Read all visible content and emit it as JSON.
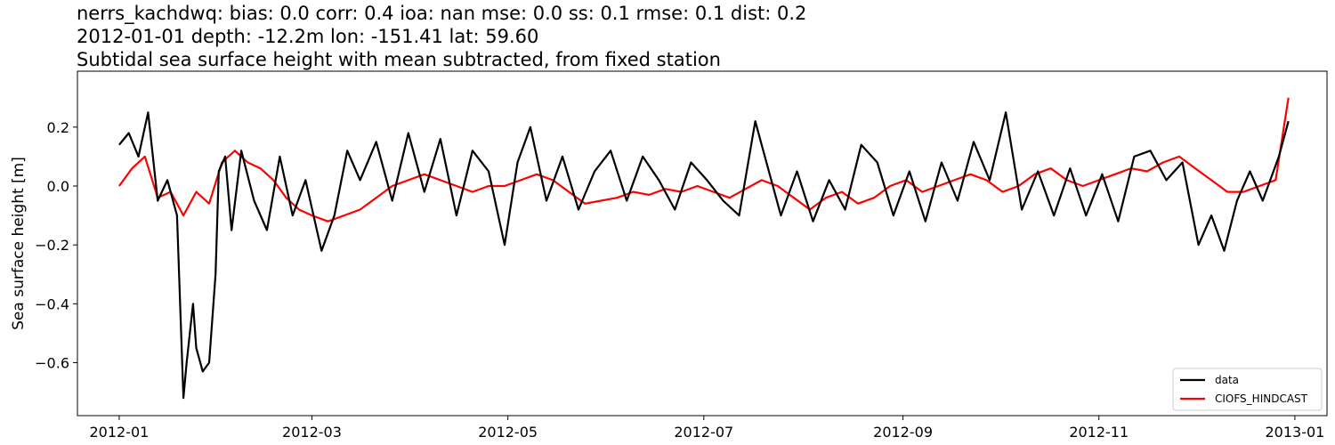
{
  "chart_data": {
    "type": "line",
    "title_lines": [
      "nerrs_kachdwq: bias: 0.0  corr: 0.4  ioa: nan  mse: 0.0  ss: 0.1  rmse: 0.1  dist: 0.2",
      "2012-01-01 depth: -12.2m lon: -151.41 lat: 59.60",
      "Subtidal sea surface height with mean subtracted, from fixed station"
    ],
    "xlabel": "",
    "ylabel": "Sea surface height [m]",
    "xlim": [
      "2011-12-19",
      "2013-01-11"
    ],
    "ylim": [
      -0.78,
      0.39
    ],
    "x_ticks": [
      "2012-01",
      "2012-03",
      "2012-05",
      "2012-07",
      "2012-09",
      "2012-11",
      "2013-01"
    ],
    "y_ticks": [
      0.2,
      0.0,
      -0.2,
      -0.4,
      -0.6
    ],
    "y_tick_labels": [
      "0.2",
      "0.0",
      "−0.2",
      "−0.4",
      "−0.6"
    ],
    "grid": false,
    "legend_position": "lower-right",
    "colors": {
      "data": "#000000",
      "CIOFS_HINDCAST": "#ff0000"
    },
    "series": [
      {
        "name": "data",
        "x": [
          "2012-01-01",
          "2012-01-04",
          "2012-01-07",
          "2012-01-10",
          "2012-01-13",
          "2012-01-16",
          "2012-01-19",
          "2012-01-21",
          "2012-01-22",
          "2012-01-24",
          "2012-01-25",
          "2012-01-27",
          "2012-01-29",
          "2012-01-31",
          "2012-02-01",
          "2012-02-03",
          "2012-02-05",
          "2012-02-08",
          "2012-02-12",
          "2012-02-16",
          "2012-02-20",
          "2012-02-24",
          "2012-02-28",
          "2012-03-04",
          "2012-03-08",
          "2012-03-12",
          "2012-03-16",
          "2012-03-21",
          "2012-03-26",
          "2012-03-31",
          "2012-04-05",
          "2012-04-10",
          "2012-04-15",
          "2012-04-20",
          "2012-04-25",
          "2012-04-30",
          "2012-05-04",
          "2012-05-08",
          "2012-05-13",
          "2012-05-18",
          "2012-05-23",
          "2012-05-28",
          "2012-06-02",
          "2012-06-07",
          "2012-06-12",
          "2012-06-17",
          "2012-06-22",
          "2012-06-27",
          "2012-07-02",
          "2012-07-07",
          "2012-07-12",
          "2012-07-17",
          "2012-07-20",
          "2012-07-25",
          "2012-07-30",
          "2012-08-04",
          "2012-08-09",
          "2012-08-14",
          "2012-08-19",
          "2012-08-24",
          "2012-08-29",
          "2012-09-03",
          "2012-09-08",
          "2012-09-13",
          "2012-09-18",
          "2012-09-23",
          "2012-09-28",
          "2012-10-03",
          "2012-10-08",
          "2012-10-13",
          "2012-10-18",
          "2012-10-23",
          "2012-10-28",
          "2012-11-02",
          "2012-11-07",
          "2012-11-12",
          "2012-11-17",
          "2012-11-22",
          "2012-11-27",
          "2012-12-02",
          "2012-12-06",
          "2012-12-10",
          "2012-12-14",
          "2012-12-18",
          "2012-12-22",
          "2012-12-27",
          "2012-12-30"
        ],
        "values": [
          0.14,
          0.18,
          0.1,
          0.25,
          -0.05,
          0.02,
          -0.1,
          -0.72,
          -0.6,
          -0.4,
          -0.55,
          -0.63,
          -0.6,
          -0.3,
          0.05,
          0.1,
          -0.15,
          0.12,
          -0.05,
          -0.15,
          0.1,
          -0.1,
          0.02,
          -0.22,
          -0.1,
          0.12,
          0.02,
          0.15,
          -0.05,
          0.18,
          -0.02,
          0.16,
          -0.1,
          0.12,
          0.05,
          -0.2,
          0.08,
          0.2,
          -0.05,
          0.1,
          -0.08,
          0.05,
          0.12,
          -0.05,
          0.1,
          0.02,
          -0.08,
          0.08,
          0.02,
          -0.05,
          -0.1,
          0.22,
          0.1,
          -0.1,
          0.05,
          -0.12,
          0.02,
          -0.08,
          0.14,
          0.08,
          -0.1,
          0.05,
          -0.12,
          0.08,
          -0.05,
          0.15,
          0.02,
          0.25,
          -0.08,
          0.05,
          -0.1,
          0.06,
          -0.1,
          0.04,
          -0.12,
          0.1,
          0.12,
          0.02,
          0.08,
          -0.2,
          -0.1,
          -0.22,
          -0.05,
          0.05,
          -0.05,
          0.1,
          0.22
        ]
      },
      {
        "name": "CIOFS_HINDCAST",
        "x": [
          "2012-01-01",
          "2012-01-05",
          "2012-01-09",
          "2012-01-13",
          "2012-01-17",
          "2012-01-21",
          "2012-01-25",
          "2012-01-29",
          "2012-02-02",
          "2012-02-06",
          "2012-02-10",
          "2012-02-14",
          "2012-02-18",
          "2012-02-22",
          "2012-02-26",
          "2012-03-01",
          "2012-03-06",
          "2012-03-11",
          "2012-03-16",
          "2012-03-21",
          "2012-03-26",
          "2012-03-31",
          "2012-04-05",
          "2012-04-10",
          "2012-04-15",
          "2012-04-20",
          "2012-04-25",
          "2012-04-30",
          "2012-05-05",
          "2012-05-10",
          "2012-05-15",
          "2012-05-20",
          "2012-05-25",
          "2012-05-30",
          "2012-06-04",
          "2012-06-09",
          "2012-06-14",
          "2012-06-19",
          "2012-06-24",
          "2012-06-29",
          "2012-07-04",
          "2012-07-09",
          "2012-07-14",
          "2012-07-19",
          "2012-07-24",
          "2012-07-29",
          "2012-08-03",
          "2012-08-08",
          "2012-08-13",
          "2012-08-18",
          "2012-08-23",
          "2012-08-28",
          "2012-09-02",
          "2012-09-07",
          "2012-09-12",
          "2012-09-17",
          "2012-09-22",
          "2012-09-27",
          "2012-10-02",
          "2012-10-07",
          "2012-10-12",
          "2012-10-17",
          "2012-10-22",
          "2012-10-27",
          "2012-11-01",
          "2012-11-06",
          "2012-11-11",
          "2012-11-16",
          "2012-11-21",
          "2012-11-26",
          "2012-12-01",
          "2012-12-06",
          "2012-12-11",
          "2012-12-16",
          "2012-12-21",
          "2012-12-26",
          "2012-12-30"
        ],
        "values": [
          0.0,
          0.06,
          0.1,
          -0.04,
          -0.02,
          -0.1,
          -0.02,
          -0.06,
          0.08,
          0.12,
          0.08,
          0.06,
          0.02,
          -0.04,
          -0.08,
          -0.1,
          -0.12,
          -0.1,
          -0.08,
          -0.04,
          0.0,
          0.02,
          0.04,
          0.02,
          0.0,
          -0.02,
          0.0,
          0.0,
          0.02,
          0.04,
          0.02,
          -0.02,
          -0.06,
          -0.05,
          -0.04,
          -0.02,
          -0.03,
          -0.01,
          -0.02,
          0.0,
          -0.02,
          -0.04,
          -0.01,
          0.02,
          0.0,
          -0.04,
          -0.08,
          -0.04,
          -0.02,
          -0.06,
          -0.04,
          0.0,
          0.02,
          -0.02,
          0.0,
          0.02,
          0.04,
          0.02,
          -0.02,
          0.0,
          0.04,
          0.06,
          0.02,
          0.0,
          0.02,
          0.04,
          0.06,
          0.05,
          0.08,
          0.1,
          0.06,
          0.02,
          -0.02,
          -0.02,
          0.0,
          0.02,
          0.3
        ]
      }
    ]
  }
}
